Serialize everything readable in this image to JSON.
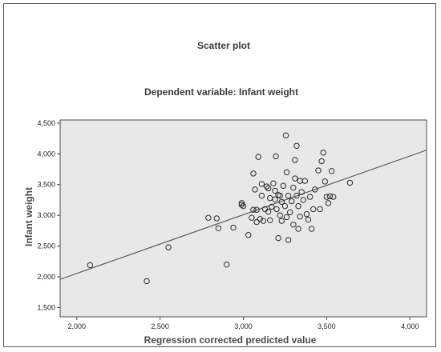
{
  "chart_data": {
    "type": "scatter",
    "title": "Scatter plot",
    "subtitle": "Dependent variable: Infant weight",
    "xlabel": "Regression corrected predicted value",
    "ylabel": "Infant weight",
    "xlim": [
      1900,
      4100
    ],
    "ylim": [
      1350,
      4550
    ],
    "xticks": [
      "2,000",
      "2,500",
      "3,000",
      "3,500",
      "4,000"
    ],
    "xtick_values": [
      2000,
      2500,
      3000,
      3500,
      4000
    ],
    "yticks": [
      "1,500",
      "2,000",
      "2,500",
      "3,000",
      "3,500",
      "4,000",
      "4,500"
    ],
    "ytick_values": [
      1500,
      2000,
      2500,
      3000,
      3500,
      4000,
      4500
    ],
    "grid": false,
    "legend": false,
    "plot_background": "#e8e8e8",
    "marker_color": "#2b2b2b",
    "fit_line": {
      "x": [
        1900,
        4100
      ],
      "y": [
        1960,
        4060
      ]
    },
    "points": [
      {
        "x": 2080,
        "y": 2190
      },
      {
        "x": 2420,
        "y": 1930
      },
      {
        "x": 2550,
        "y": 2480
      },
      {
        "x": 2790,
        "y": 2960
      },
      {
        "x": 2840,
        "y": 2950
      },
      {
        "x": 2850,
        "y": 2790
      },
      {
        "x": 2900,
        "y": 2200
      },
      {
        "x": 2940,
        "y": 2800
      },
      {
        "x": 2990,
        "y": 3200
      },
      {
        "x": 3000,
        "y": 3150
      },
      {
        "x": 3030,
        "y": 2680
      },
      {
        "x": 3050,
        "y": 2960
      },
      {
        "x": 3060,
        "y": 3680
      },
      {
        "x": 3070,
        "y": 3420
      },
      {
        "x": 3080,
        "y": 3090
      },
      {
        "x": 3080,
        "y": 2890
      },
      {
        "x": 3090,
        "y": 3950
      },
      {
        "x": 3100,
        "y": 2940
      },
      {
        "x": 3110,
        "y": 3510
      },
      {
        "x": 3110,
        "y": 3320
      },
      {
        "x": 3120,
        "y": 2910
      },
      {
        "x": 3130,
        "y": 3100
      },
      {
        "x": 3140,
        "y": 3470
      },
      {
        "x": 3150,
        "y": 3060
      },
      {
        "x": 3160,
        "y": 3280
      },
      {
        "x": 3160,
        "y": 2920
      },
      {
        "x": 3170,
        "y": 3140
      },
      {
        "x": 3180,
        "y": 3520
      },
      {
        "x": 3190,
        "y": 3400
      },
      {
        "x": 3190,
        "y": 3260
      },
      {
        "x": 3195,
        "y": 3960
      },
      {
        "x": 3200,
        "y": 3100
      },
      {
        "x": 3210,
        "y": 2630
      },
      {
        "x": 3210,
        "y": 3330
      },
      {
        "x": 3220,
        "y": 3000
      },
      {
        "x": 3230,
        "y": 3220
      },
      {
        "x": 3230,
        "y": 2910
      },
      {
        "x": 3240,
        "y": 3480
      },
      {
        "x": 3250,
        "y": 3150
      },
      {
        "x": 3255,
        "y": 4300
      },
      {
        "x": 3260,
        "y": 3700
      },
      {
        "x": 3260,
        "y": 2970
      },
      {
        "x": 3270,
        "y": 2600
      },
      {
        "x": 3270,
        "y": 3320
      },
      {
        "x": 3280,
        "y": 3050
      },
      {
        "x": 3290,
        "y": 3230
      },
      {
        "x": 3300,
        "y": 3450
      },
      {
        "x": 3300,
        "y": 2850
      },
      {
        "x": 3310,
        "y": 3900
      },
      {
        "x": 3310,
        "y": 3600
      },
      {
        "x": 3320,
        "y": 4130
      },
      {
        "x": 3320,
        "y": 3320
      },
      {
        "x": 3330,
        "y": 3150
      },
      {
        "x": 3340,
        "y": 3560
      },
      {
        "x": 3340,
        "y": 2980
      },
      {
        "x": 3350,
        "y": 3380
      },
      {
        "x": 3360,
        "y": 3250
      },
      {
        "x": 3370,
        "y": 3560
      },
      {
        "x": 3380,
        "y": 3020
      },
      {
        "x": 3390,
        "y": 2930
      },
      {
        "x": 3400,
        "y": 3300
      },
      {
        "x": 3410,
        "y": 2780
      },
      {
        "x": 3420,
        "y": 3100
      },
      {
        "x": 3430,
        "y": 3420
      },
      {
        "x": 3450,
        "y": 3730
      },
      {
        "x": 3460,
        "y": 3100
      },
      {
        "x": 3470,
        "y": 3880
      },
      {
        "x": 3480,
        "y": 4020
      },
      {
        "x": 3490,
        "y": 3550
      },
      {
        "x": 3500,
        "y": 3300
      },
      {
        "x": 3510,
        "y": 3200
      },
      {
        "x": 3520,
        "y": 3310
      },
      {
        "x": 3530,
        "y": 3720
      },
      {
        "x": 3540,
        "y": 3300
      },
      {
        "x": 3640,
        "y": 3530
      },
      {
        "x": 2990,
        "y": 3170
      },
      {
        "x": 3220,
        "y": 3320
      },
      {
        "x": 3330,
        "y": 2780
      },
      {
        "x": 3150,
        "y": 3440
      },
      {
        "x": 3060,
        "y": 3090
      }
    ]
  }
}
